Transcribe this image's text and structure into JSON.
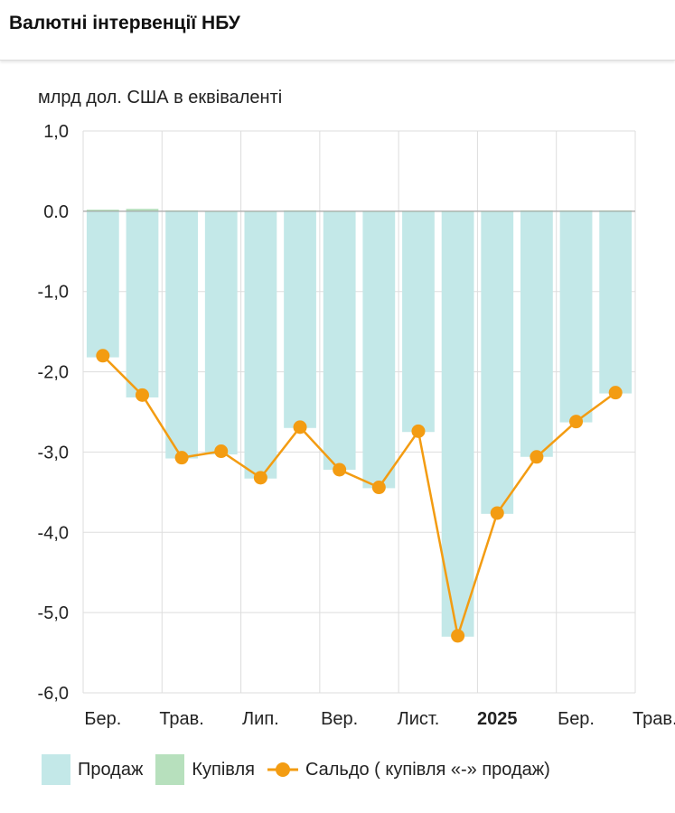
{
  "header": {
    "title": "Валютні інтервенції НБУ"
  },
  "colors": {
    "sales": "#c3e8e8",
    "purchases": "#b7e0bd",
    "balance": "#f39c12"
  },
  "chart_data": {
    "type": "bar",
    "unit_label": "млрд дол. США в еквіваленті",
    "ylim": [
      -6,
      1
    ],
    "y_ticks": [
      "1,0",
      "0.0",
      "-1,0",
      "-2,0",
      "-3,0",
      "-4,0",
      "-5,0",
      "-6,0"
    ],
    "x_tick_labels": [
      "Бер.",
      "Трав.",
      "Лип.",
      "Вер.",
      "Лист.",
      "2025",
      "Бер.",
      "Трав."
    ],
    "bold_tick": "2025",
    "grid": true,
    "legend_position": "bottom",
    "series": [
      {
        "name": "Продаж",
        "type": "bar",
        "values": [
          -1.82,
          -2.32,
          -3.08,
          -3.03,
          -3.33,
          -2.7,
          -3.22,
          -3.45,
          -2.75,
          -5.3,
          -3.77,
          -3.06,
          -2.63,
          -2.27
        ]
      },
      {
        "name": "Купівля",
        "type": "bar",
        "values": [
          0.02,
          0.03,
          0.01,
          0.0,
          0.0,
          0.01,
          0.0,
          0.0,
          0.0,
          0.0,
          0.0,
          0.01,
          0.01,
          0.01
        ]
      },
      {
        "name": "Сальдо ( купівля «-» продаж)",
        "type": "line",
        "values": [
          -1.8,
          -2.29,
          -3.07,
          -2.99,
          -3.32,
          -2.69,
          -3.22,
          -3.44,
          -2.74,
          -5.29,
          -3.76,
          -3.06,
          -2.62,
          -2.26
        ]
      }
    ]
  }
}
